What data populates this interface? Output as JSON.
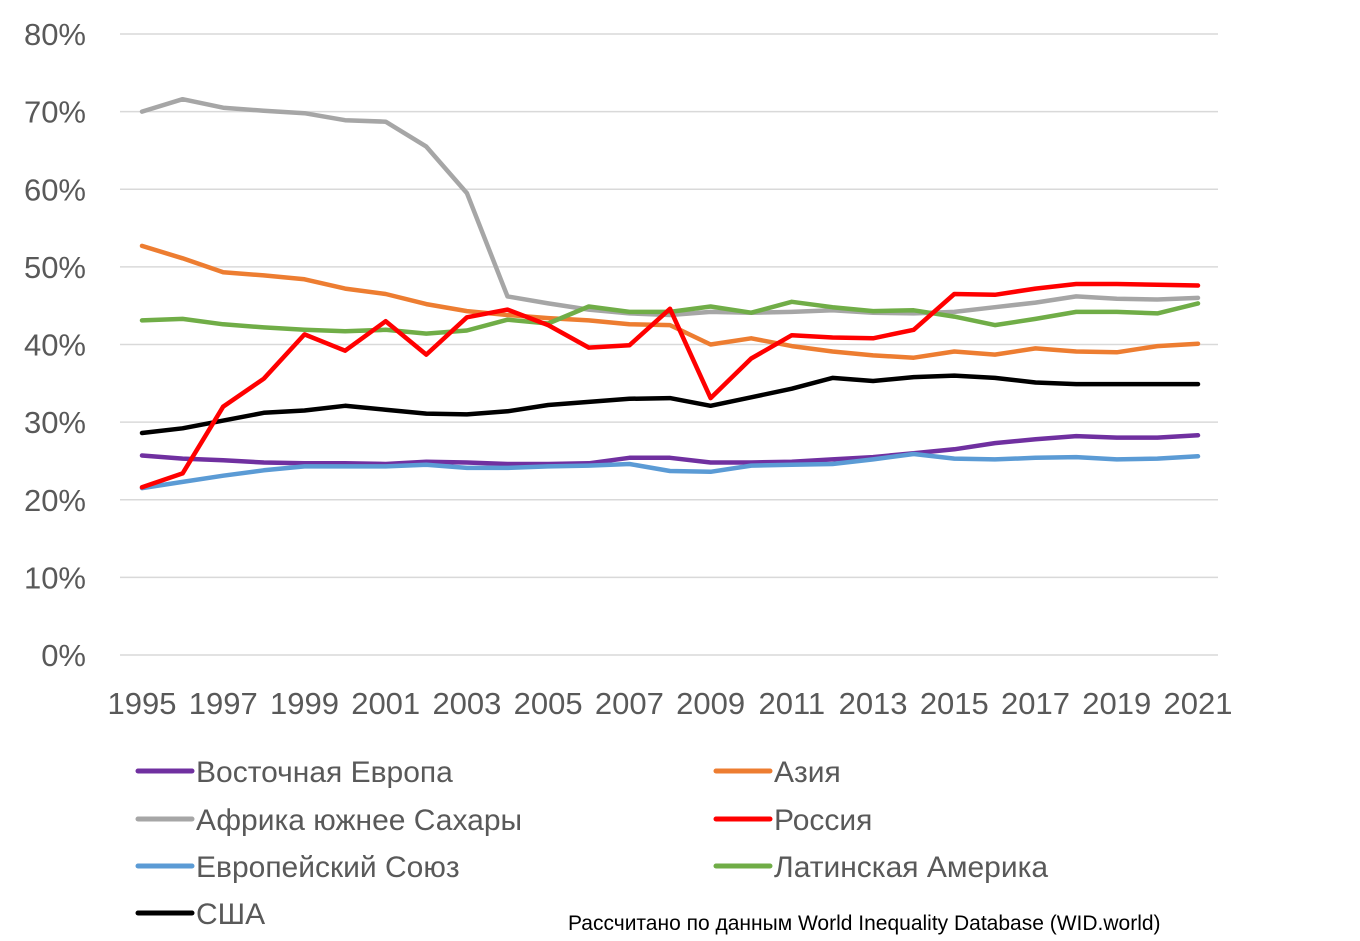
{
  "chart_data": {
    "type": "line",
    "title": "",
    "xlabel": "",
    "ylabel": "",
    "ylim": [
      0,
      80
    ],
    "yticks": [
      "0%",
      "10%",
      "20%",
      "30%",
      "40%",
      "50%",
      "60%",
      "70%",
      "80%"
    ],
    "ytick_values": [
      0,
      10,
      20,
      30,
      40,
      50,
      60,
      70,
      80
    ],
    "x": [
      1995,
      1996,
      1997,
      1998,
      1999,
      2000,
      2001,
      2002,
      2003,
      2004,
      2005,
      2006,
      2007,
      2008,
      2009,
      2010,
      2011,
      2012,
      2013,
      2014,
      2015,
      2016,
      2017,
      2018,
      2019,
      2020,
      2021
    ],
    "xticks": [
      "1995",
      "1997",
      "1999",
      "2001",
      "2003",
      "2005",
      "2007",
      "2009",
      "2011",
      "2013",
      "2015",
      "2017",
      "2019",
      "2021"
    ],
    "grid": true,
    "legend_position": "bottom",
    "series": [
      {
        "name": "Восточная Европа",
        "color": "#7030a0",
        "values": [
          25.7,
          25.3,
          25.1,
          24.8,
          24.7,
          24.7,
          24.6,
          24.9,
          24.8,
          24.6,
          24.6,
          24.7,
          25.4,
          25.4,
          24.8,
          24.8,
          24.9,
          25.2,
          25.5,
          26.0,
          26.5,
          27.3,
          27.8,
          28.2,
          28.0,
          28.0,
          28.3
        ]
      },
      {
        "name": "Азия",
        "color": "#ed7d31",
        "values": [
          52.7,
          51.1,
          49.3,
          48.9,
          48.4,
          47.2,
          46.5,
          45.2,
          44.3,
          43.8,
          43.4,
          43.1,
          42.6,
          42.5,
          40.0,
          40.8,
          39.8,
          39.1,
          38.6,
          38.3,
          39.1,
          38.7,
          39.5,
          39.1,
          39.0,
          39.8,
          40.1
        ]
      },
      {
        "name": "Африка южнее Сахары",
        "color": "#a6a6a6",
        "values": [
          70.0,
          71.6,
          70.5,
          70.1,
          69.8,
          68.9,
          68.7,
          65.5,
          59.5,
          46.2,
          45.3,
          44.5,
          44.0,
          43.8,
          44.2,
          44.1,
          44.2,
          44.4,
          44.1,
          44.0,
          44.2,
          44.8,
          45.4,
          46.2,
          45.9,
          45.8,
          46.0
        ]
      },
      {
        "name": "Россия",
        "color": "#ff0000",
        "values": [
          21.6,
          23.4,
          32.0,
          35.6,
          41.3,
          39.2,
          43.0,
          38.7,
          43.5,
          44.5,
          42.5,
          39.6,
          39.9,
          44.6,
          33.1,
          38.2,
          41.2,
          40.9,
          40.8,
          41.9,
          46.5,
          46.4,
          47.2,
          47.8,
          47.8,
          47.7,
          47.6
        ]
      },
      {
        "name": "Европейский Союз",
        "color": "#5b9bd5",
        "values": [
          21.5,
          22.3,
          23.1,
          23.8,
          24.3,
          24.3,
          24.3,
          24.5,
          24.1,
          24.1,
          24.3,
          24.4,
          24.6,
          23.7,
          23.6,
          24.4,
          24.5,
          24.6,
          25.2,
          25.9,
          25.3,
          25.2,
          25.4,
          25.5,
          25.2,
          25.3,
          25.6
        ]
      },
      {
        "name": "Латинская Америка",
        "color": "#70ad47",
        "values": [
          43.1,
          43.3,
          42.6,
          42.2,
          41.9,
          41.7,
          41.9,
          41.4,
          41.8,
          43.2,
          42.7,
          44.9,
          44.2,
          44.2,
          44.9,
          44.1,
          45.5,
          44.8,
          44.3,
          44.4,
          43.6,
          42.5,
          43.3,
          44.2,
          44.2,
          44.0,
          45.3
        ]
      },
      {
        "name": "США",
        "color": "#000000",
        "values": [
          28.6,
          29.2,
          30.2,
          31.2,
          31.5,
          32.1,
          31.6,
          31.1,
          31.0,
          31.4,
          32.2,
          32.6,
          33.0,
          33.1,
          32.1,
          33.2,
          34.3,
          35.7,
          35.3,
          35.8,
          36.0,
          35.7,
          35.1,
          34.9,
          34.9,
          34.9,
          34.9
        ]
      }
    ],
    "legend_order": [
      0,
      1,
      2,
      3,
      4,
      5,
      6
    ]
  },
  "source_note": "Рассчитано по данным World Inequality Database (WID.world)"
}
